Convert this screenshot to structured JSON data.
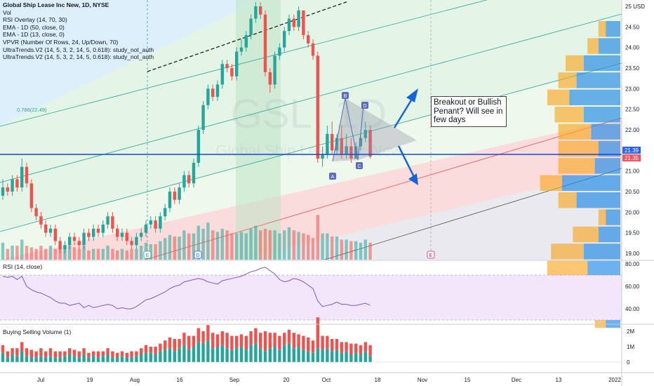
{
  "legend": {
    "title": "Global Ship Lease Inc New, 1D, NYSE",
    "lines": [
      "Vol",
      "RSI Overlay (14, 70, 30)",
      "EMA - 1D (50, close, 0)",
      "EMA - 1D (13, close, 0)",
      "VPVR (Number Of Rows, 24, Up/Down, 70)",
      "UltraTrends.V2 (14, 5, 3, 2, 14, 5, 0.618): study_not_auth",
      "UltraTrends.V2 (14, 5, 3, 2, 14, 5, 0.618): study_not_auth"
    ]
  },
  "fib_label": "0.786(22.49)",
  "price_axis": {
    "ticks": [
      "25 USD",
      "24.50",
      "24.00",
      "23.50",
      "23.00",
      "22.50",
      "22.00",
      "21.50",
      "21.00",
      "20.50",
      "20.00",
      "19.50",
      "19.00"
    ],
    "current_price": "21.39",
    "prev_price": "21.35"
  },
  "rsi_panel": {
    "label": "RSI (14, close)",
    "ticks": [
      "80.00",
      "60.00",
      "40.00"
    ]
  },
  "bsv_panel": {
    "label": "Buying Selling Volume (1)",
    "ticks": [
      "2M",
      "1M",
      "0"
    ]
  },
  "time_axis": [
    "Jul",
    "19",
    "Aug",
    "16",
    "Sep",
    "20",
    "Oct",
    "18",
    "Nov",
    "15",
    "Dec",
    "13",
    "2022"
  ],
  "pattern_points": [
    "A",
    "B",
    "C",
    "D"
  ],
  "event_markers": [
    "E",
    "D",
    "E"
  ],
  "annotation": "Breakout or Bullish Penant? Will see in few days",
  "watermark": "GSL, 1D",
  "watermark_sub": "Global Ship Lease Inc New",
  "colors": {
    "up": "#26a69a",
    "down": "#ef5350",
    "current_line": "#1848cc",
    "price_badge": "#2962ff",
    "prev_badge": "#f7525f",
    "arrow": "#1565d8"
  },
  "chart_data": [
    {
      "type": "candlestick",
      "title": "Global Ship Lease Inc New, 1D, NYSE",
      "ylim": [
        18.85,
        25.1
      ],
      "ylabel": "USD",
      "x": [
        0,
        1,
        2,
        3,
        4,
        5,
        6,
        7,
        8,
        9,
        10,
        11,
        12,
        13,
        14,
        15,
        16,
        17,
        18,
        19,
        20,
        21,
        22,
        23,
        24,
        25,
        26,
        27,
        28,
        29,
        30,
        31,
        32,
        33,
        34,
        35,
        36,
        37,
        38,
        39,
        40,
        41,
        42,
        43,
        44,
        45,
        46,
        47,
        48,
        49,
        50,
        51,
        52,
        53,
        54,
        55,
        56,
        57,
        58,
        59,
        60,
        61,
        62,
        63,
        64,
        65,
        66,
        67,
        68,
        69,
        70,
        71,
        72,
        73,
        74,
        75,
        76,
        77
      ],
      "open": [
        20.4,
        20.6,
        20.5,
        20.8,
        20.6,
        21.1,
        20.7,
        20.1,
        19.9,
        19.7,
        19.5,
        19.6,
        19.3,
        19.1,
        19.2,
        19.4,
        19.3,
        19.2,
        19.5,
        19.4,
        19.6,
        19.5,
        19.7,
        19.9,
        19.6,
        19.4,
        19.5,
        19.3,
        19.2,
        19.4,
        19.5,
        19.7,
        19.8,
        19.6,
        19.9,
        20.1,
        20.5,
        20.3,
        20.6,
        20.9,
        20.7,
        21.2,
        22.0,
        22.6,
        23.0,
        22.8,
        23.1,
        23.6,
        23.5,
        23.3,
        23.9,
        24.0,
        24.3,
        24.7,
        25.0,
        24.8,
        23.4,
        23.1,
        23.8,
        24.0,
        24.4,
        24.7,
        24.5,
        24.9,
        24.3,
        24.1,
        23.8,
        21.3,
        21.4,
        21.9,
        21.5,
        21.8,
        21.4,
        21.6,
        21.3,
        21.6,
        21.8,
        22.0
      ],
      "close": [
        20.6,
        20.5,
        20.8,
        20.6,
        21.1,
        20.7,
        20.1,
        19.9,
        19.7,
        19.5,
        19.6,
        19.3,
        19.1,
        19.2,
        19.4,
        19.3,
        19.2,
        19.5,
        19.4,
        19.6,
        19.5,
        19.7,
        19.9,
        19.6,
        19.4,
        19.5,
        19.3,
        19.2,
        19.4,
        19.5,
        19.7,
        19.8,
        19.6,
        19.9,
        20.1,
        20.5,
        20.3,
        20.6,
        20.9,
        20.7,
        21.2,
        22.0,
        22.6,
        23.0,
        22.8,
        23.1,
        23.6,
        23.5,
        23.3,
        23.9,
        24.0,
        24.3,
        24.7,
        25.0,
        24.8,
        23.4,
        23.1,
        23.8,
        24.0,
        24.4,
        24.7,
        24.5,
        24.9,
        24.3,
        24.1,
        23.8,
        21.3,
        21.4,
        21.9,
        21.5,
        21.8,
        21.4,
        21.6,
        21.3,
        21.6,
        21.8,
        22.0,
        21.35
      ],
      "high": [
        20.8,
        20.7,
        20.9,
        20.9,
        21.3,
        21.2,
        20.8,
        20.2,
        20.0,
        19.8,
        19.7,
        19.7,
        19.4,
        19.3,
        19.5,
        19.5,
        19.4,
        19.6,
        19.6,
        19.7,
        19.7,
        19.8,
        20.0,
        20.0,
        19.7,
        19.6,
        19.6,
        19.4,
        19.5,
        19.6,
        19.8,
        19.9,
        19.9,
        20.0,
        20.2,
        20.6,
        20.6,
        20.7,
        21.0,
        21.0,
        21.3,
        22.1,
        22.7,
        23.1,
        23.1,
        23.2,
        23.7,
        23.7,
        23.6,
        24.0,
        24.2,
        24.4,
        24.8,
        25.1,
        25.1,
        24.9,
        23.5,
        23.9,
        24.1,
        24.5,
        24.8,
        24.8,
        25.0,
        24.9,
        24.4,
        24.2,
        23.9,
        21.6,
        22.1,
        22.2,
        21.9,
        22.1,
        21.9,
        21.8,
        21.7,
        21.9,
        22.2,
        22.1
      ],
      "low": [
        20.3,
        20.4,
        20.4,
        20.5,
        20.5,
        20.6,
        20.0,
        19.8,
        19.6,
        19.4,
        19.4,
        19.2,
        19.0,
        19.0,
        19.1,
        19.2,
        19.1,
        19.1,
        19.3,
        19.3,
        19.4,
        19.4,
        19.6,
        19.5,
        19.3,
        19.3,
        19.2,
        19.1,
        19.1,
        19.3,
        19.4,
        19.6,
        19.5,
        19.5,
        19.8,
        20.0,
        20.2,
        20.2,
        20.5,
        20.6,
        20.6,
        21.1,
        21.9,
        22.5,
        22.7,
        22.7,
        23.0,
        23.4,
        23.2,
        23.2,
        23.8,
        23.9,
        24.2,
        24.6,
        24.7,
        23.3,
        22.9,
        23.0,
        23.7,
        23.9,
        24.3,
        24.4,
        24.4,
        24.2,
        24.0,
        23.7,
        21.2,
        21.1,
        21.3,
        21.4,
        21.4,
        21.3,
        21.3,
        21.2,
        21.3,
        21.5,
        21.7,
        21.3
      ]
    },
    {
      "type": "line",
      "title": "RSI (14, close)",
      "ylim": [
        28,
        82
      ],
      "x": [
        0,
        1,
        2,
        3,
        4,
        5,
        6,
        7,
        8,
        9,
        10,
        11,
        12,
        13,
        14,
        15,
        16,
        17,
        18,
        19,
        20,
        21,
        22,
        23,
        24,
        25,
        26,
        27,
        28,
        29,
        30,
        31,
        32,
        33,
        34,
        35,
        36,
        37,
        38,
        39,
        40,
        41,
        42,
        43,
        44,
        45,
        46,
        47,
        48,
        49,
        50,
        51,
        52,
        53,
        54,
        55,
        56,
        57,
        58,
        59,
        60,
        61,
        62,
        63,
        64,
        65,
        66,
        67,
        68,
        69,
        70,
        71,
        72,
        73,
        74,
        75,
        76,
        77
      ],
      "y": [
        69,
        68,
        69,
        66,
        69,
        60,
        57,
        55,
        54,
        52,
        50,
        47,
        45,
        45,
        43,
        44,
        45,
        41,
        43,
        41,
        42,
        43,
        44,
        43,
        40,
        41,
        40,
        40,
        42,
        45,
        48,
        49,
        51,
        53,
        55,
        58,
        60,
        61,
        64,
        65,
        66,
        67,
        66,
        64,
        63,
        62,
        65,
        66,
        67,
        68,
        69,
        71,
        73,
        74,
        76,
        77,
        74,
        71,
        66,
        64,
        65,
        67,
        66,
        64,
        61,
        58,
        47,
        42,
        43,
        44,
        46,
        44,
        44,
        43,
        43,
        44,
        45,
        43
      ]
    },
    {
      "type": "bar",
      "title": "Buying Selling Volume (1)",
      "ylim": [
        -0.8,
        2.5
      ],
      "ylabel": "M",
      "x": [
        0,
        1,
        2,
        3,
        4,
        5,
        6,
        7,
        8,
        9,
        10,
        11,
        12,
        13,
        14,
        15,
        16,
        17,
        18,
        19,
        20,
        21,
        22,
        23,
        24,
        25,
        26,
        27,
        28,
        29,
        30,
        31,
        32,
        33,
        34,
        35,
        36,
        37,
        38,
        39,
        40,
        41,
        42,
        43,
        44,
        45,
        46,
        47,
        48,
        49,
        50,
        51,
        52,
        53,
        54,
        55,
        56,
        57,
        58,
        59,
        60,
        61,
        62,
        63,
        64,
        65,
        66,
        67,
        68,
        69,
        70,
        71,
        72,
        73,
        74,
        75,
        76,
        77
      ],
      "series": [
        {
          "name": "Buying",
          "values": [
            0.6,
            0.3,
            0.5,
            0.4,
            0.7,
            0.4,
            0.3,
            0.3,
            0.4,
            0.3,
            0.4,
            0.3,
            0.3,
            0.4,
            0.5,
            0.4,
            0.3,
            0.5,
            0.3,
            0.4,
            0.3,
            0.4,
            0.5,
            0.3,
            0.3,
            0.4,
            0.3,
            0.3,
            0.4,
            0.5,
            0.6,
            0.6,
            0.5,
            0.7,
            0.8,
            0.9,
            0.7,
            0.9,
            1.1,
            0.8,
            1.0,
            1.3,
            1.2,
            1.4,
            0.9,
            1.0,
            1.1,
            0.9,
            0.8,
            0.9,
            1.0,
            0.8,
            1.1,
            1.2,
            0.9,
            0.7,
            0.9,
            1.0,
            0.8,
            1.1,
            1.2,
            0.9,
            1.0,
            0.8,
            0.7,
            0.6,
            0.9,
            0.8,
            0.9,
            0.7,
            0.8,
            0.6,
            0.7,
            0.5,
            0.6,
            0.5,
            0.7,
            0.4
          ]
        },
        {
          "name": "Selling",
          "values": [
            0.5,
            0.4,
            0.4,
            0.5,
            0.6,
            0.5,
            0.5,
            0.4,
            0.5,
            0.4,
            0.5,
            0.4,
            0.4,
            0.3,
            0.4,
            0.4,
            0.4,
            0.4,
            0.3,
            0.3,
            0.4,
            0.3,
            0.4,
            0.4,
            0.3,
            0.3,
            0.3,
            0.4,
            0.3,
            0.4,
            0.5,
            0.4,
            0.5,
            0.5,
            0.6,
            0.7,
            0.8,
            0.6,
            0.8,
            0.9,
            0.7,
            0.9,
            0.8,
            1.0,
            1.0,
            0.8,
            0.9,
            1.0,
            0.9,
            0.8,
            0.8,
            0.9,
            0.9,
            1.0,
            1.0,
            1.3,
            1.0,
            0.9,
            0.9,
            0.8,
            0.9,
            1.0,
            0.8,
            0.9,
            0.9,
            0.8,
            2.0,
            0.9,
            0.8,
            0.8,
            0.7,
            0.7,
            0.6,
            0.7,
            0.6,
            0.6,
            0.6,
            0.7
          ]
        }
      ]
    }
  ]
}
